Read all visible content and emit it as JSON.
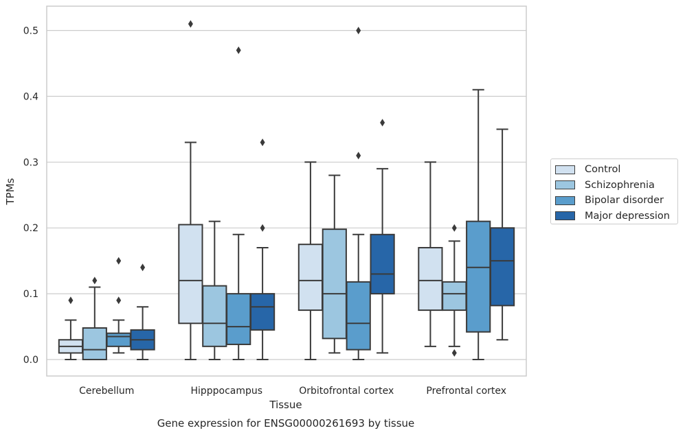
{
  "chart_data": {
    "type": "box",
    "title": "",
    "xlabel": "Tissue",
    "ylabel": "TPMs",
    "caption": "Gene expression for ENSG00000261693 by tissue",
    "categories": [
      "Cerebellum",
      "Hipppocampus",
      "Orbitofrontal cortex",
      "Prefrontal cortex"
    ],
    "ylim": [
      -0.025,
      0.537
    ],
    "yticks": [
      "0.0",
      "0.1",
      "0.2",
      "0.3",
      "0.4",
      "0.5"
    ],
    "grid": true,
    "legend_position": "right, outside plot",
    "series": [
      {
        "name": "Control",
        "color": "#d1e1f0",
        "boxes": [
          {
            "whislo": 0.0,
            "q1": 0.01,
            "med": 0.02,
            "q3": 0.03,
            "whishi": 0.06,
            "fliers": [
              0.09
            ]
          },
          {
            "whislo": 0.0,
            "q1": 0.055,
            "med": 0.12,
            "q3": 0.205,
            "whishi": 0.33,
            "fliers": [
              0.51
            ]
          },
          {
            "whislo": 0.0,
            "q1": 0.075,
            "med": 0.12,
            "q3": 0.175,
            "whishi": 0.3,
            "fliers": []
          },
          {
            "whislo": 0.02,
            "q1": 0.075,
            "med": 0.12,
            "q3": 0.17,
            "whishi": 0.3,
            "fliers": []
          }
        ]
      },
      {
        "name": "Schizophrenia",
        "color": "#9cc6e0",
        "boxes": [
          {
            "whislo": 0.0,
            "q1": 0.0,
            "med": 0.015,
            "q3": 0.048,
            "whishi": 0.11,
            "fliers": [
              0.12
            ]
          },
          {
            "whislo": 0.0,
            "q1": 0.02,
            "med": 0.055,
            "q3": 0.112,
            "whishi": 0.21,
            "fliers": []
          },
          {
            "whislo": 0.01,
            "q1": 0.032,
            "med": 0.1,
            "q3": 0.198,
            "whishi": 0.28,
            "fliers": []
          },
          {
            "whislo": 0.02,
            "q1": 0.075,
            "med": 0.1,
            "q3": 0.118,
            "whishi": 0.18,
            "fliers": [
              0.01,
              0.2
            ]
          }
        ]
      },
      {
        "name": "Bipolar disorder",
        "color": "#5a9dcc",
        "boxes": [
          {
            "whislo": 0.01,
            "q1": 0.02,
            "med": 0.035,
            "q3": 0.04,
            "whishi": 0.06,
            "fliers": [
              0.09,
              0.15
            ]
          },
          {
            "whislo": 0.0,
            "q1": 0.023,
            "med": 0.05,
            "q3": 0.1,
            "whishi": 0.19,
            "fliers": [
              0.47
            ]
          },
          {
            "whislo": 0.0,
            "q1": 0.015,
            "med": 0.055,
            "q3": 0.118,
            "whishi": 0.19,
            "fliers": [
              0.31,
              0.5
            ]
          },
          {
            "whislo": 0.0,
            "q1": 0.042,
            "med": 0.14,
            "q3": 0.21,
            "whishi": 0.41,
            "fliers": []
          }
        ]
      },
      {
        "name": "Major depression",
        "color": "#2766a8",
        "boxes": [
          {
            "whislo": 0.0,
            "q1": 0.015,
            "med": 0.03,
            "q3": 0.045,
            "whishi": 0.08,
            "fliers": [
              0.14
            ]
          },
          {
            "whislo": 0.0,
            "q1": 0.045,
            "med": 0.08,
            "q3": 0.1,
            "whishi": 0.17,
            "fliers": [
              0.2,
              0.33
            ]
          },
          {
            "whislo": 0.01,
            "q1": 0.1,
            "med": 0.13,
            "q3": 0.19,
            "whishi": 0.29,
            "fliers": [
              0.36
            ]
          },
          {
            "whislo": 0.03,
            "q1": 0.082,
            "med": 0.15,
            "q3": 0.2,
            "whishi": 0.35,
            "fliers": []
          }
        ]
      }
    ]
  }
}
